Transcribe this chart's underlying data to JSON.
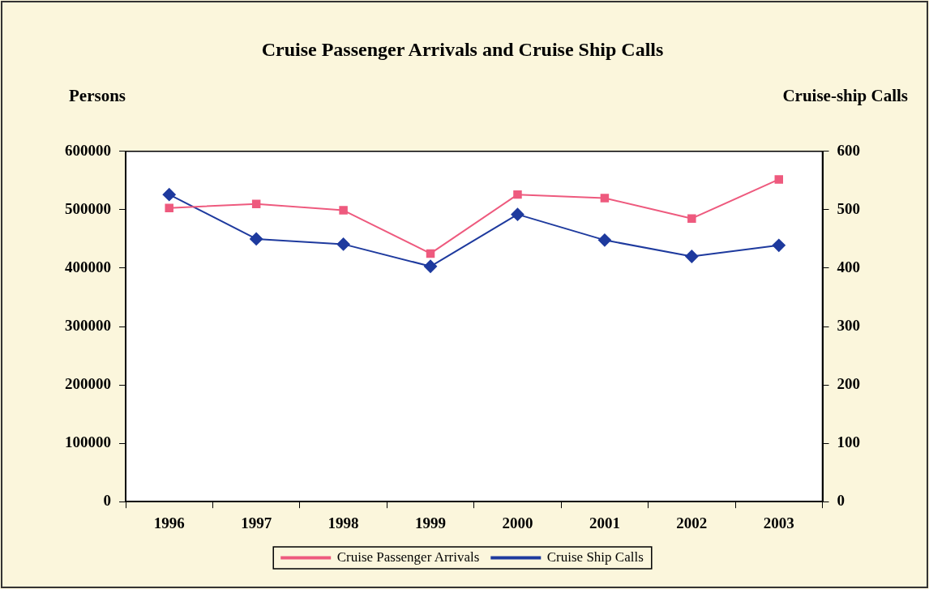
{
  "chart_data": {
    "type": "line",
    "title": "Cruise Passenger Arrivals and Cruise Ship Calls",
    "ylabel": "Persons",
    "y2label": "Cruise-ship Calls",
    "categories": [
      "1996",
      "1997",
      "1998",
      "1999",
      "2000",
      "2001",
      "2002",
      "2003"
    ],
    "series": [
      {
        "name": "Cruise Passenger Arrivals",
        "color": "#ee5a7e",
        "marker": "square",
        "values": [
          503000,
          510000,
          499000,
          425000,
          526000,
          520000,
          485000,
          552000
        ]
      },
      {
        "name": "Cruise Ship Calls",
        "color": "#1e3a9e",
        "marker": "diamond",
        "axis": "y2",
        "values": [
          526,
          450,
          441,
          403,
          492,
          448,
          420,
          439
        ]
      }
    ],
    "ylim": [
      0,
      600000
    ],
    "yticks": [
      0,
      100000,
      200000,
      300000,
      400000,
      500000,
      600000
    ],
    "y2lim": [
      0,
      600
    ],
    "y2ticks": [
      0,
      100,
      200,
      300,
      400,
      500,
      600
    ],
    "grid": false,
    "legend": "bottom"
  }
}
